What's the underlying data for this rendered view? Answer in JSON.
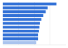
{
  "chart_data": {
    "type": "bar",
    "orientation": "horizontal",
    "categories": [
      null,
      null,
      null,
      null,
      null,
      null,
      null,
      null,
      null,
      null,
      null
    ],
    "values": [
      85,
      71,
      68,
      64,
      61,
      59,
      58,
      57,
      56,
      56,
      53
    ],
    "colors": [
      "#2f6fd6",
      "#2f6fd6",
      "#2f6fd6",
      "#2f6fd6",
      "#2f6fd6",
      "#2f6fd6",
      "#2f6fd6",
      "#2f6fd6",
      "#2f6fd6",
      "#2f6fd6",
      "#a9c3ee"
    ],
    "xlim": [
      0,
      100
    ],
    "xticks": [
      0,
      25,
      50,
      75,
      100
    ],
    "grid": true,
    "tick_labels": false
  }
}
